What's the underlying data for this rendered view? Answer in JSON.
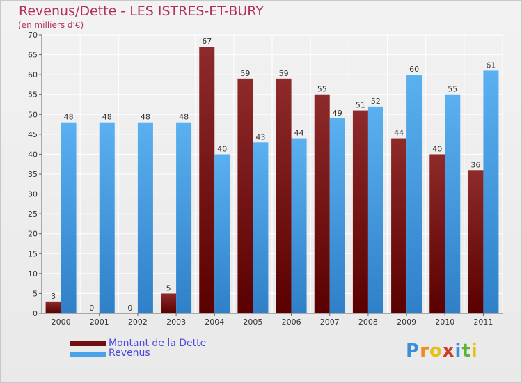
{
  "title": "Revenus/Dette - LES ISTRES-ET-BURY",
  "subtitle": "(en milliers d'€)",
  "chart_data": {
    "type": "bar",
    "categories": [
      "2000",
      "2001",
      "2002",
      "2003",
      "2004",
      "2005",
      "2006",
      "2007",
      "2008",
      "2009",
      "2010",
      "2011"
    ],
    "series": [
      {
        "name": "Montant de la Dette",
        "values": [
          3,
          0,
          0,
          5,
          67,
          59,
          59,
          55,
          51,
          44,
          40,
          36
        ],
        "color": "#7a1a1a"
      },
      {
        "name": "Revenus",
        "values": [
          48,
          48,
          48,
          48,
          40,
          43,
          44,
          49,
          52,
          60,
          55,
          61
        ],
        "color": "#4aa3e8"
      }
    ],
    "ylim": [
      0,
      70
    ],
    "yticks": [
      0,
      5,
      10,
      15,
      20,
      25,
      30,
      35,
      40,
      45,
      50,
      55,
      60,
      65,
      70
    ],
    "grid": true,
    "xlabel": "",
    "ylabel": ""
  },
  "legend": [
    {
      "label": "Montant de la Dette",
      "color": "#6e0e0e"
    },
    {
      "label": "Revenus",
      "color": "#4aa3e8"
    }
  ],
  "logo": {
    "letters": [
      "P",
      "r",
      "o",
      "x",
      "i",
      "t",
      "i"
    ],
    "colors": [
      "#3b8fd9",
      "#f08a1c",
      "#e5c21a",
      "#d23a2a",
      "#3b8fd9",
      "#5bb33a",
      "#e5c21a"
    ]
  }
}
